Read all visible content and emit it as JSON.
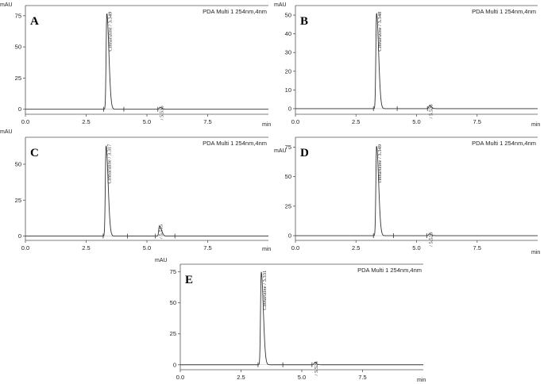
{
  "chart_data": [
    {
      "type": "line",
      "panel_label": "A",
      "ylabel": "mAU",
      "xlabel": "min",
      "detector": "PDA Multi 1 254nm,4nm",
      "xlim": [
        0.0,
        10.0
      ],
      "ylim": [
        -4,
        80
      ],
      "x_ticks": [
        "0.0",
        "2.5",
        "5.0",
        "7.5"
      ],
      "x_tick_values": [
        0.0,
        2.5,
        5.0,
        7.5
      ],
      "y_ticks": [
        "0",
        "25",
        "50",
        "75"
      ],
      "y_tick_values": [
        0,
        25,
        50,
        75
      ],
      "grid": false,
      "peaks": [
        {
          "rt": 3.349,
          "height": 77,
          "label": "Cinnarizine / 3.349"
        },
        {
          "rt": 5.536,
          "height": 1.5,
          "label": "/ 5.536"
        }
      ],
      "event_marks": [
        3.22,
        4.05,
        5.45
      ]
    },
    {
      "type": "line",
      "panel_label": "B",
      "ylabel": "mAU",
      "xlabel": "min",
      "detector": "PDA Multi 1 254nm,4nm",
      "xlim": [
        0.0,
        10.0
      ],
      "ylim": [
        -3,
        53
      ],
      "x_ticks": [
        "0.0",
        "2.5",
        "5.0",
        "7.5"
      ],
      "x_tick_values": [
        0.0,
        2.5,
        5.0,
        7.5
      ],
      "y_ticks": [
        "0",
        "10",
        "20",
        "30",
        "40",
        "50"
      ],
      "y_tick_values": [
        0,
        10,
        20,
        30,
        40,
        50
      ],
      "grid": false,
      "peaks": [
        {
          "rt": 3.348,
          "height": 51,
          "label": "Cinnarizine / 3.348"
        },
        {
          "rt": 5.528,
          "height": 1.5,
          "label": "/ 5.528"
        }
      ],
      "event_marks": [
        3.22,
        4.2,
        5.45
      ]
    },
    {
      "type": "line",
      "panel_label": "C",
      "ylabel": "mAU",
      "xlabel": "min",
      "detector": "PDA Multi 1 254nm,4nm",
      "xlim": [
        0.0,
        10.0
      ],
      "ylim": [
        -3,
        66
      ],
      "x_ticks": [
        "0.0",
        "2.5",
        "5.0",
        "7.5"
      ],
      "x_tick_values": [
        0.0,
        2.5,
        5.0,
        7.5
      ],
      "y_ticks": [
        "0",
        "25",
        "50"
      ],
      "y_tick_values": [
        0,
        25,
        50
      ],
      "grid": false,
      "peaks": [
        {
          "rt": 3.317,
          "height": 63,
          "label": "Cinnarizine / 3.317"
        },
        {
          "rt": 5.515,
          "height": 7,
          "label": "/ 5.515"
        }
      ],
      "event_marks": [
        3.2,
        4.2,
        5.35,
        6.15
      ]
    },
    {
      "type": "line",
      "panel_label": "D",
      "ylabel": "mAU",
      "xlabel": "min",
      "detector": "PDA Multi 1 254nm,4nm",
      "xlim": [
        0.0,
        10.0
      ],
      "ylim": [
        -4,
        80
      ],
      "x_ticks": [
        "0.0",
        "2.5",
        "5.0",
        "7.5"
      ],
      "x_tick_values": [
        0.0,
        2.5,
        5.0,
        7.5
      ],
      "y_ticks": [
        "0",
        "25",
        "50",
        "75"
      ],
      "y_tick_values": [
        0,
        25,
        50,
        75
      ],
      "grid": false,
      "peaks": [
        {
          "rt": 3.349,
          "height": 76,
          "label": "cinnarizine / 3.349"
        },
        {
          "rt": 5.523,
          "height": 1.5,
          "label": "/ 5.523"
        }
      ],
      "event_marks": [
        3.22,
        4.05,
        5.42
      ]
    },
    {
      "type": "line",
      "panel_label": "E",
      "ylabel": "mAU",
      "xlabel": "min",
      "detector": "PDA Multi 1 254nm,4nm",
      "xlim": [
        0.0,
        10.0
      ],
      "ylim": [
        -4,
        78
      ],
      "x_ticks": [
        "0.0",
        "2.5",
        "5.0",
        "7.5"
      ],
      "x_tick_values": [
        0.0,
        2.5,
        5.0,
        7.5
      ],
      "y_ticks": [
        "0",
        "25",
        "50",
        "75"
      ],
      "y_tick_values": [
        0,
        25,
        50,
        75
      ],
      "grid": false,
      "peaks": [
        {
          "rt": 3.331,
          "height": 75,
          "label": "Cinnarizine / 3.331"
        },
        {
          "rt": 5.524,
          "height": 1.5,
          "label": "/ 5.524"
        }
      ],
      "event_marks": [
        3.2,
        4.22,
        5.42
      ]
    }
  ]
}
